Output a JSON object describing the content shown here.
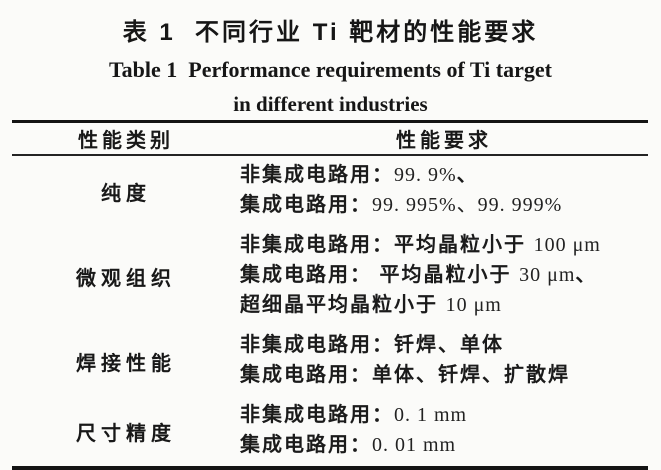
{
  "title": {
    "zh": "表 1  不同行业 Ti 靶材的性能要求",
    "en_line1": "Table 1  Performance requirements of Ti target",
    "en_line2": "in different industries"
  },
  "table": {
    "headers": {
      "category": "性能类别",
      "requirement": "性能要求"
    },
    "rows": [
      {
        "category": "纯度",
        "lines": [
          {
            "pre": "非集成电路用：",
            "num": "99. 9%",
            "post": "、"
          },
          {
            "pre": "集成电路用：",
            "num": "99. 995%、99. 999%",
            "post": ""
          }
        ]
      },
      {
        "category": "微观组织",
        "lines": [
          {
            "pre": "非集成电路用：平均晶粒小于 ",
            "num": "100 μm",
            "post": ""
          },
          {
            "pre": "集成电路用： 平均晶粒小于 ",
            "num": "30 μm",
            "post": "、"
          },
          {
            "pre": "超细晶平均晶粒小于 ",
            "num": "10 μm",
            "post": ""
          }
        ]
      },
      {
        "category": "焊接性能",
        "lines": [
          {
            "pre": "非集成电路用：钎焊、单体",
            "num": "",
            "post": ""
          },
          {
            "pre": "集成电路用：单体、钎焊、扩散焊",
            "num": "",
            "post": ""
          }
        ]
      },
      {
        "category": "尺寸精度",
        "lines": [
          {
            "pre": "非集成电路用：",
            "num": "0. 1 mm",
            "post": ""
          },
          {
            "pre": "集成电路用：",
            "num": "0. 01 mm",
            "post": ""
          }
        ]
      }
    ]
  }
}
